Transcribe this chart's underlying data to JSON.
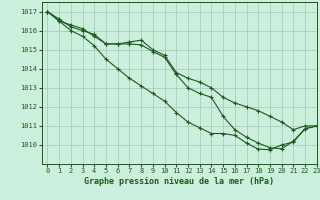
{
  "title": "Graphe pression niveau de la mer (hPa)",
  "bg_color": "#cceedd",
  "grid_color": "#aaccbb",
  "line_color": "#1a5c1a",
  "xlim": [
    -0.5,
    23
  ],
  "ylim": [
    1009.0,
    1017.5
  ],
  "yticks": [
    1010,
    1011,
    1012,
    1013,
    1014,
    1015,
    1016,
    1017
  ],
  "xticks": [
    0,
    1,
    2,
    3,
    4,
    5,
    6,
    7,
    8,
    9,
    10,
    11,
    12,
    13,
    14,
    15,
    16,
    17,
    18,
    19,
    20,
    21,
    22,
    23
  ],
  "series": [
    [
      1017.0,
      1016.6,
      1016.2,
      1016.0,
      1015.8,
      1015.3,
      1015.3,
      1015.4,
      1015.5,
      1015.0,
      1014.7,
      1013.8,
      1013.5,
      1013.3,
      1013.0,
      1012.5,
      1012.2,
      1012.0,
      1011.8,
      1011.5,
      1011.2,
      1010.8,
      1011.0,
      1011.0
    ],
    [
      1017.0,
      1016.5,
      1016.3,
      1016.1,
      1015.7,
      1015.3,
      1015.3,
      1015.3,
      1015.25,
      1014.9,
      1014.6,
      1013.7,
      1013.0,
      1012.7,
      1012.5,
      1011.5,
      1010.8,
      1010.4,
      1010.1,
      1009.85,
      1009.8,
      1010.2,
      1010.85,
      1011.0
    ],
    [
      1017.0,
      1016.5,
      1016.0,
      1015.7,
      1015.2,
      1014.5,
      1014.0,
      1013.5,
      1013.1,
      1012.7,
      1012.3,
      1011.7,
      1011.2,
      1010.9,
      1010.6,
      1010.6,
      1010.5,
      1010.1,
      1009.78,
      1009.75,
      1010.0,
      1010.15,
      1010.85,
      1011.0
    ]
  ]
}
